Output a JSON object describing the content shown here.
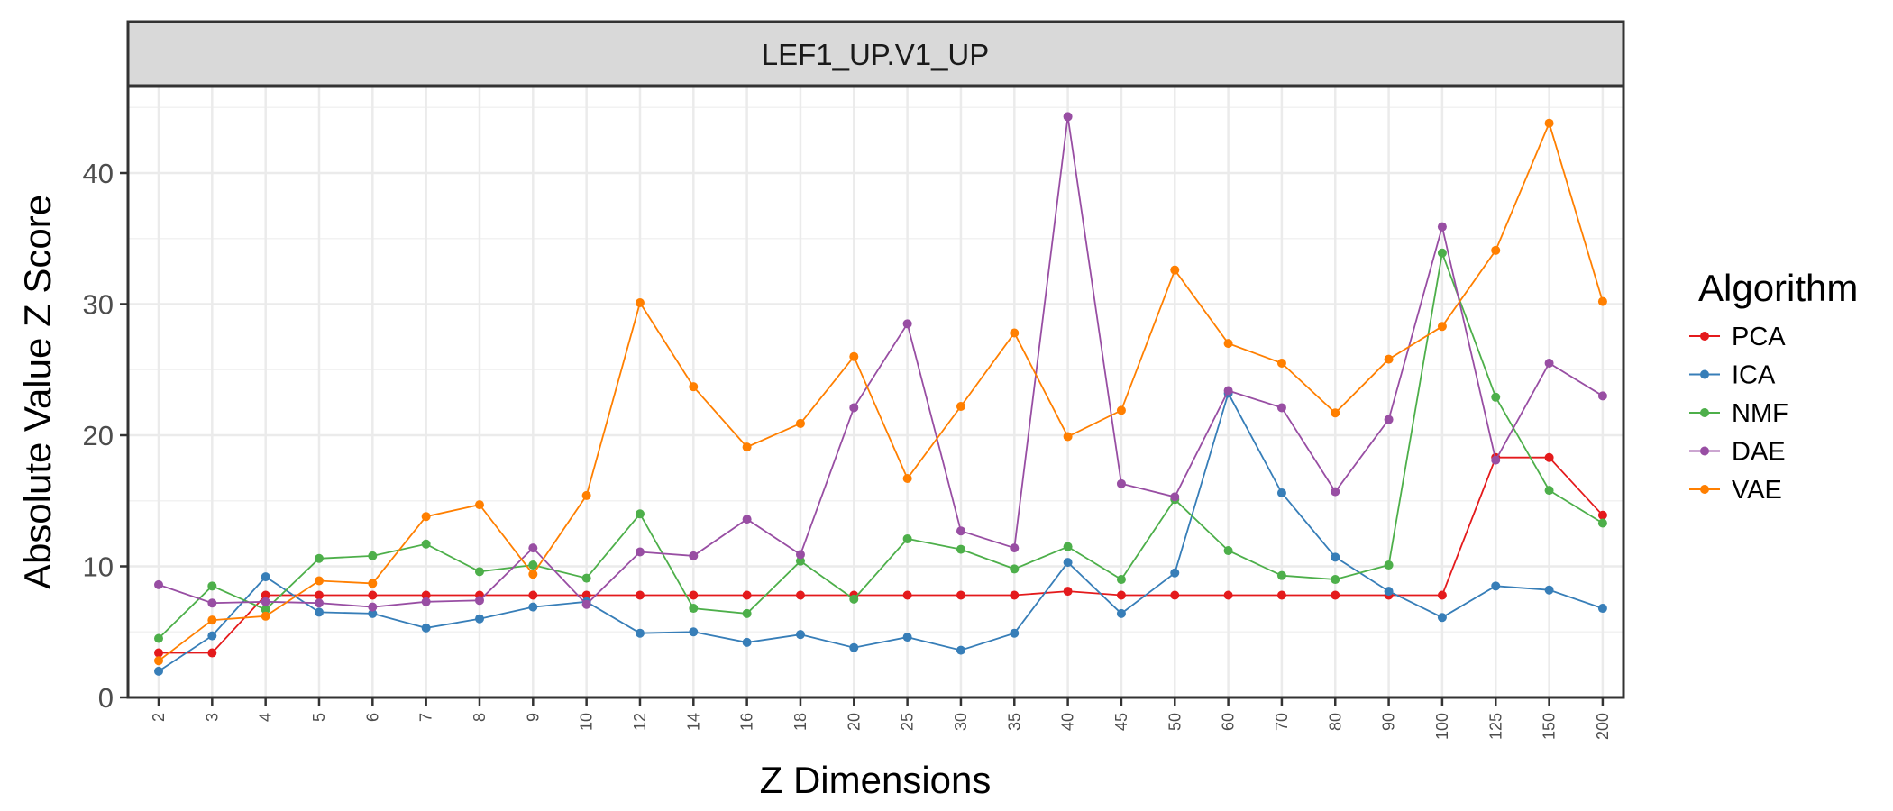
{
  "chart_data": {
    "type": "line",
    "facet_title": "LEF1_UP.V1_UP",
    "xlabel": "Z Dimensions",
    "ylabel": "Absolute Value Z Score",
    "categories": [
      "2",
      "3",
      "4",
      "5",
      "6",
      "7",
      "8",
      "9",
      "10",
      "12",
      "14",
      "16",
      "18",
      "20",
      "25",
      "30",
      "35",
      "40",
      "45",
      "50",
      "60",
      "70",
      "80",
      "90",
      "100",
      "125",
      "150",
      "200"
    ],
    "ylim": [
      0,
      46.5
    ],
    "y_ticks": [
      0,
      10,
      20,
      30,
      40
    ],
    "grid": true,
    "legend": {
      "title": "Algorithm",
      "position": "right"
    },
    "series": [
      {
        "name": "PCA",
        "color": "#e41a1c",
        "values": [
          3.4,
          3.4,
          7.8,
          7.8,
          7.8,
          7.8,
          7.8,
          7.8,
          7.8,
          7.8,
          7.8,
          7.8,
          7.8,
          7.8,
          7.8,
          7.8,
          7.8,
          8.1,
          7.8,
          7.8,
          7.8,
          7.8,
          7.8,
          7.8,
          7.8,
          18.3,
          18.3,
          13.9
        ]
      },
      {
        "name": "ICA",
        "color": "#377eb8",
        "values": [
          2.0,
          4.7,
          9.2,
          6.5,
          6.4,
          5.3,
          6.0,
          6.9,
          7.3,
          4.9,
          5.0,
          4.2,
          4.8,
          3.8,
          4.6,
          3.6,
          4.9,
          10.3,
          6.4,
          9.5,
          23.2,
          15.6,
          10.7,
          8.1,
          6.1,
          8.5,
          8.2,
          6.8
        ]
      },
      {
        "name": "NMF",
        "color": "#4daf4a",
        "values": [
          4.5,
          8.5,
          6.7,
          10.6,
          10.8,
          11.7,
          9.6,
          10.1,
          9.1,
          14.0,
          6.8,
          6.4,
          10.4,
          7.5,
          12.1,
          11.3,
          9.8,
          11.5,
          9.0,
          15.1,
          11.2,
          9.3,
          9.0,
          10.1,
          33.9,
          22.9,
          15.8,
          13.3
        ]
      },
      {
        "name": "DAE",
        "color": "#984ea3",
        "values": [
          8.6,
          7.2,
          7.3,
          7.2,
          6.9,
          7.3,
          7.4,
          11.4,
          7.1,
          11.1,
          10.8,
          13.6,
          10.9,
          22.1,
          28.5,
          12.7,
          11.4,
          44.3,
          16.3,
          15.3,
          23.4,
          22.1,
          15.7,
          21.2,
          35.9,
          18.1,
          25.5,
          23.0
        ]
      },
      {
        "name": "VAE",
        "color": "#ff7f00",
        "values": [
          2.8,
          5.9,
          6.2,
          8.9,
          8.7,
          13.8,
          14.7,
          9.4,
          15.4,
          30.1,
          23.7,
          19.1,
          20.9,
          26.0,
          16.7,
          22.2,
          27.8,
          19.9,
          21.9,
          32.6,
          27.0,
          25.5,
          21.7,
          25.8,
          28.3,
          34.1,
          43.8,
          30.2
        ]
      }
    ]
  }
}
